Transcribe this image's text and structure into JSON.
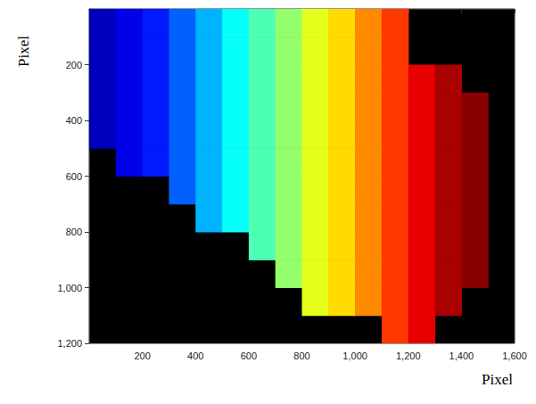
{
  "chart_data": {
    "type": "heatmap",
    "x_label": "Pixel",
    "y_label": "Pixel",
    "x": [
      50,
      150,
      250,
      350,
      450,
      550,
      650,
      750,
      850,
      950,
      1050,
      1150,
      1250,
      1350,
      1450,
      1550
    ],
    "y": [
      50,
      150,
      250,
      350,
      450,
      550,
      650,
      750,
      850,
      950,
      1050,
      1150
    ],
    "cells": [
      [
        0.05,
        0.1,
        0.15,
        0.22,
        0.3,
        0.38,
        0.45,
        0.52,
        0.6,
        0.66,
        0.74,
        0.82,
        null,
        null,
        null,
        null
      ],
      [
        0.05,
        0.1,
        0.15,
        0.22,
        0.3,
        0.38,
        0.45,
        0.52,
        0.6,
        0.66,
        0.74,
        0.82,
        null,
        null,
        null,
        null
      ],
      [
        0.05,
        0.1,
        0.15,
        0.22,
        0.3,
        0.38,
        0.45,
        0.52,
        0.6,
        0.66,
        0.74,
        0.82,
        0.9,
        0.96,
        null,
        null
      ],
      [
        0.05,
        0.1,
        0.15,
        0.22,
        0.3,
        0.38,
        0.45,
        0.52,
        0.6,
        0.66,
        0.74,
        0.82,
        0.9,
        0.96,
        0.99,
        null
      ],
      [
        0.05,
        0.1,
        0.15,
        0.22,
        0.3,
        0.38,
        0.45,
        0.52,
        0.6,
        0.66,
        0.74,
        0.82,
        0.9,
        0.96,
        0.99,
        null
      ],
      [
        null,
        0.1,
        0.15,
        0.22,
        0.3,
        0.38,
        0.45,
        0.52,
        0.6,
        0.66,
        0.74,
        0.82,
        0.9,
        0.96,
        0.99,
        null
      ],
      [
        null,
        null,
        null,
        0.22,
        0.3,
        0.38,
        0.45,
        0.52,
        0.6,
        0.66,
        0.74,
        0.82,
        0.9,
        0.96,
        0.99,
        null
      ],
      [
        null,
        null,
        null,
        null,
        0.3,
        0.38,
        0.45,
        0.52,
        0.6,
        0.66,
        0.74,
        0.82,
        0.9,
        0.96,
        0.99,
        null
      ],
      [
        null,
        null,
        null,
        null,
        null,
        null,
        0.45,
        0.52,
        0.6,
        0.66,
        0.74,
        0.82,
        0.9,
        0.96,
        0.99,
        null
      ],
      [
        null,
        null,
        null,
        null,
        null,
        null,
        null,
        0.52,
        0.6,
        0.66,
        0.74,
        0.82,
        0.9,
        0.96,
        0.99,
        null
      ],
      [
        null,
        null,
        null,
        null,
        null,
        null,
        null,
        null,
        0.6,
        0.66,
        0.74,
        0.82,
        0.9,
        0.96,
        null,
        null
      ],
      [
        null,
        null,
        null,
        null,
        null,
        null,
        null,
        null,
        null,
        null,
        null,
        0.82,
        0.9,
        null,
        null,
        null
      ]
    ],
    "color_range": [
      0,
      1
    ],
    "xlim": [
      0,
      1600
    ],
    "xticks": [
      200,
      400,
      600,
      800,
      1000,
      1200,
      1400,
      1600
    ],
    "ylim": [
      0,
      1200
    ],
    "yticks": [
      200,
      400,
      600,
      800,
      1000,
      1200
    ],
    "grid": false
  }
}
